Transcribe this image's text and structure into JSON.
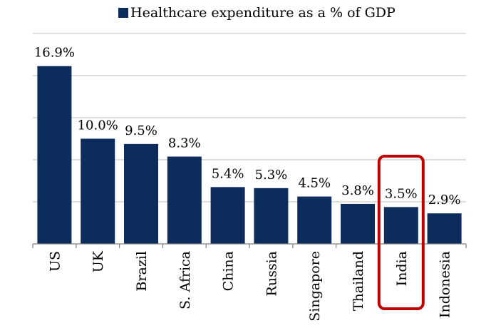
{
  "legend": {
    "label": "Healthcare expenditure as a % of GDP",
    "position": "top-center"
  },
  "colors": {
    "bar": "#0D2C5E",
    "grid": "#BFBFBF",
    "highlight": "#C00000",
    "text": "#000000"
  },
  "chart_data": {
    "type": "bar",
    "categories": [
      "US",
      "UK",
      "Brazil",
      "S. Africa",
      "China",
      "Russia",
      "Singapore",
      "Thailand",
      "India",
      "Indonesia"
    ],
    "series": [
      {
        "name": "Healthcare expenditure as a % of GDP",
        "values": [
          16.9,
          10.0,
          9.5,
          8.3,
          5.4,
          5.3,
          4.5,
          3.8,
          3.5,
          2.9
        ],
        "labels": [
          "16.9%",
          "10.0%",
          "9.5%",
          "8.3%",
          "5.4%",
          "5.3%",
          "4.5%",
          "3.8%",
          "3.5%",
          "2.9%"
        ]
      }
    ],
    "ylim": [
      0,
      20
    ],
    "grid": true,
    "highlighted_category": "India",
    "legend_position": "top-center"
  }
}
